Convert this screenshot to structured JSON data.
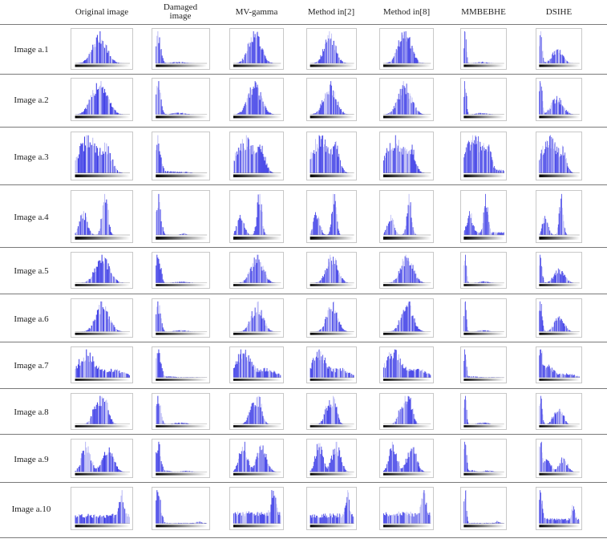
{
  "table": {
    "columns": [
      {
        "key": "original",
        "label": "Original image"
      },
      {
        "key": "damaged",
        "label": "Damaged\nimage"
      },
      {
        "key": "mvgamma",
        "label": "MV-gamma"
      },
      {
        "key": "method2",
        "label": "Method in[2]"
      },
      {
        "key": "method8",
        "label": "Method in[8]"
      },
      {
        "key": "mmbebhe",
        "label": "MMBEBHE"
      },
      {
        "key": "dsihe",
        "label": "DSIHE"
      }
    ],
    "rows": [
      {
        "label": "Image a.1"
      },
      {
        "label": "Image a.2"
      },
      {
        "label": "Image a.3"
      },
      {
        "label": "Image a.4"
      },
      {
        "label": "Image a.5"
      },
      {
        "label": "Image a.6"
      },
      {
        "label": "Image a.7"
      },
      {
        "label": "Image a.8"
      },
      {
        "label": "Image a.9"
      },
      {
        "label": "Image a.10"
      }
    ]
  },
  "colors": {
    "histogram_fill": "#3b3be6",
    "histogram_light": "#b9b9f5",
    "rule": "#7a7a7a"
  }
}
